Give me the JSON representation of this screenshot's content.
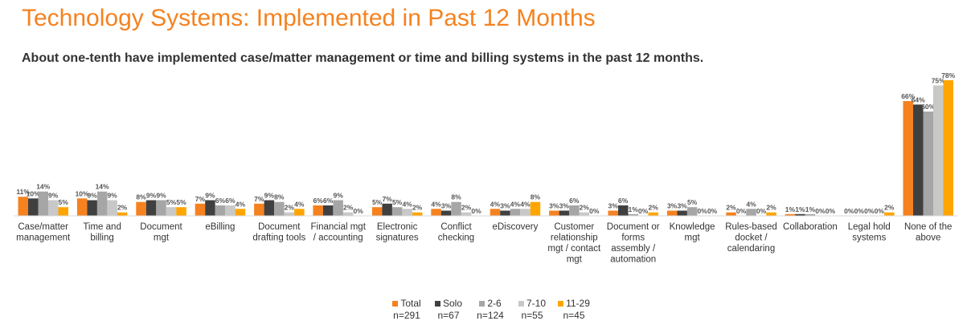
{
  "header": {
    "title": "Technology Systems: Implemented in Past 12 Months",
    "subtitle": "About one-tenth have implemented case/matter management or time and billing systems in the past 12 months."
  },
  "colors": {
    "title": "#f5821f",
    "total": "#f5821f",
    "solo": "#404040",
    "s2_6": "#a6a6a6",
    "s7_10": "#c8c8c8",
    "s11_29": "#ffa500"
  },
  "legend": [
    {
      "label": "Total",
      "n": "n=291",
      "color": "#f5821f"
    },
    {
      "label": "Solo",
      "n": "n=67",
      "color": "#404040"
    },
    {
      "label": "2-6",
      "n": "n=124",
      "color": "#a6a6a6"
    },
    {
      "label": "7-10",
      "n": "n=55",
      "color": "#c8c8c8"
    },
    {
      "label": "11-29",
      "n": "n=45",
      "color": "#ffa500"
    }
  ],
  "chart_data": {
    "type": "bar",
    "title": "Technology Systems: Implemented in Past 12 Months",
    "categories": [
      [
        "Case/matter",
        "management"
      ],
      [
        "Time and",
        "billing"
      ],
      [
        "Document",
        "mgt"
      ],
      [
        "eBilling"
      ],
      [
        "Document",
        "drafting tools"
      ],
      [
        "Financial mgt",
        "/ accounting"
      ],
      [
        "Electronic",
        "signatures"
      ],
      [
        "Conflict",
        "checking"
      ],
      [
        "eDiscovery"
      ],
      [
        "Customer",
        "relationship",
        "mgt / contact",
        "mgt"
      ],
      [
        "Document or",
        "forms",
        "assembly /",
        "automation"
      ],
      [
        "Knowledge",
        "mgt"
      ],
      [
        "Rules-based",
        "docket /",
        "calendaring"
      ],
      [
        "Collaboration"
      ],
      [
        "Legal hold",
        "systems"
      ],
      [
        "None of the",
        "above"
      ]
    ],
    "series": [
      {
        "name": "Total",
        "color": "#f5821f",
        "values": [
          11,
          10,
          8,
          7,
          7,
          6,
          5,
          4,
          4,
          3,
          3,
          3,
          2,
          1,
          0,
          66
        ]
      },
      {
        "name": "Solo",
        "color": "#404040",
        "values": [
          10,
          9,
          9,
          9,
          9,
          6,
          7,
          3,
          3,
          3,
          6,
          3,
          0,
          1,
          0,
          64
        ]
      },
      {
        "name": "2-6",
        "color": "#a6a6a6",
        "values": [
          14,
          14,
          9,
          6,
          8,
          9,
          5,
          8,
          4,
          6,
          1,
          5,
          4,
          1,
          0,
          60
        ]
      },
      {
        "name": "7-10",
        "color": "#c8c8c8",
        "values": [
          9,
          9,
          5,
          6,
          2,
          2,
          4,
          2,
          4,
          2,
          0,
          0,
          0,
          0,
          0,
          75
        ]
      },
      {
        "name": "11-29",
        "color": "#ffa500",
        "values": [
          5,
          2,
          5,
          4,
          4,
          0,
          2,
          0,
          8,
          0,
          2,
          0,
          2,
          0,
          2,
          78
        ]
      }
    ],
    "value_suffix": "%",
    "ylim": [
      0,
      78
    ],
    "grid": false,
    "legend_position": "bottom"
  }
}
